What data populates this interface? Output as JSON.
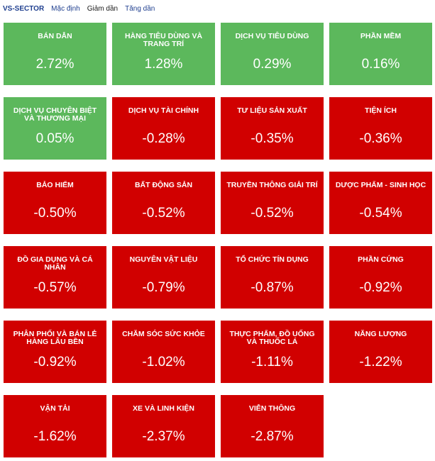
{
  "header": {
    "brand": "VS-SECTOR",
    "sort_default": "Mặc định",
    "sort_desc": "Giảm dần",
    "sort_asc": "Tăng dần",
    "active_sort": "Giảm dần"
  },
  "colors": {
    "positive": "#5cb85c",
    "negative": "#d10000"
  },
  "sectors": [
    {
      "name": "BÁN DẪN",
      "value": "2.72%"
    },
    {
      "name": "HÀNG TIÊU DÙNG VÀ TRANG TRÍ",
      "value": "1.28%"
    },
    {
      "name": "DỊCH VỤ TIÊU DÙNG",
      "value": "0.29%"
    },
    {
      "name": "PHẦN MỀM",
      "value": "0.16%"
    },
    {
      "name": "DỊCH VỤ CHUYÊN BIỆT VÀ THƯƠNG MẠI",
      "value": "0.05%"
    },
    {
      "name": "DỊCH VỤ TÀI CHÍNH",
      "value": "-0.28%"
    },
    {
      "name": "TƯ LIỆU SẢN XUẤT",
      "value": "-0.35%"
    },
    {
      "name": "TIỆN ÍCH",
      "value": "-0.36%"
    },
    {
      "name": "BẢO HIỂM",
      "value": "-0.50%"
    },
    {
      "name": "BẤT ĐỘNG SẢN",
      "value": "-0.52%"
    },
    {
      "name": "TRUYỀN THÔNG GIẢI TRÍ",
      "value": "-0.52%"
    },
    {
      "name": "DƯỢC PHẨM - SINH HỌC",
      "value": "-0.54%"
    },
    {
      "name": "ĐỒ GIA DỤNG VÀ CÁ NHÂN",
      "value": "-0.57%"
    },
    {
      "name": "NGUYÊN VẬT LIỆU",
      "value": "-0.79%"
    },
    {
      "name": "TỔ CHỨC TÍN DỤNG",
      "value": "-0.87%"
    },
    {
      "name": "PHẦN CỨNG",
      "value": "-0.92%"
    },
    {
      "name": "PHÂN PHỐI VÀ BÁN LẺ HÀNG LÂU BỀN",
      "value": "-0.92%"
    },
    {
      "name": "CHĂM SÓC SỨC KHỎE",
      "value": "-1.02%"
    },
    {
      "name": "THỰC PHẨM, ĐỒ UỐNG VÀ THUỐC LÁ",
      "value": "-1.11%"
    },
    {
      "name": "NĂNG LƯỢNG",
      "value": "-1.22%"
    },
    {
      "name": "VẬN TẢI",
      "value": "-1.62%"
    },
    {
      "name": "XE VÀ LINH KIỆN",
      "value": "-2.37%"
    },
    {
      "name": "VIỄN THÔNG",
      "value": "-2.87%"
    }
  ]
}
